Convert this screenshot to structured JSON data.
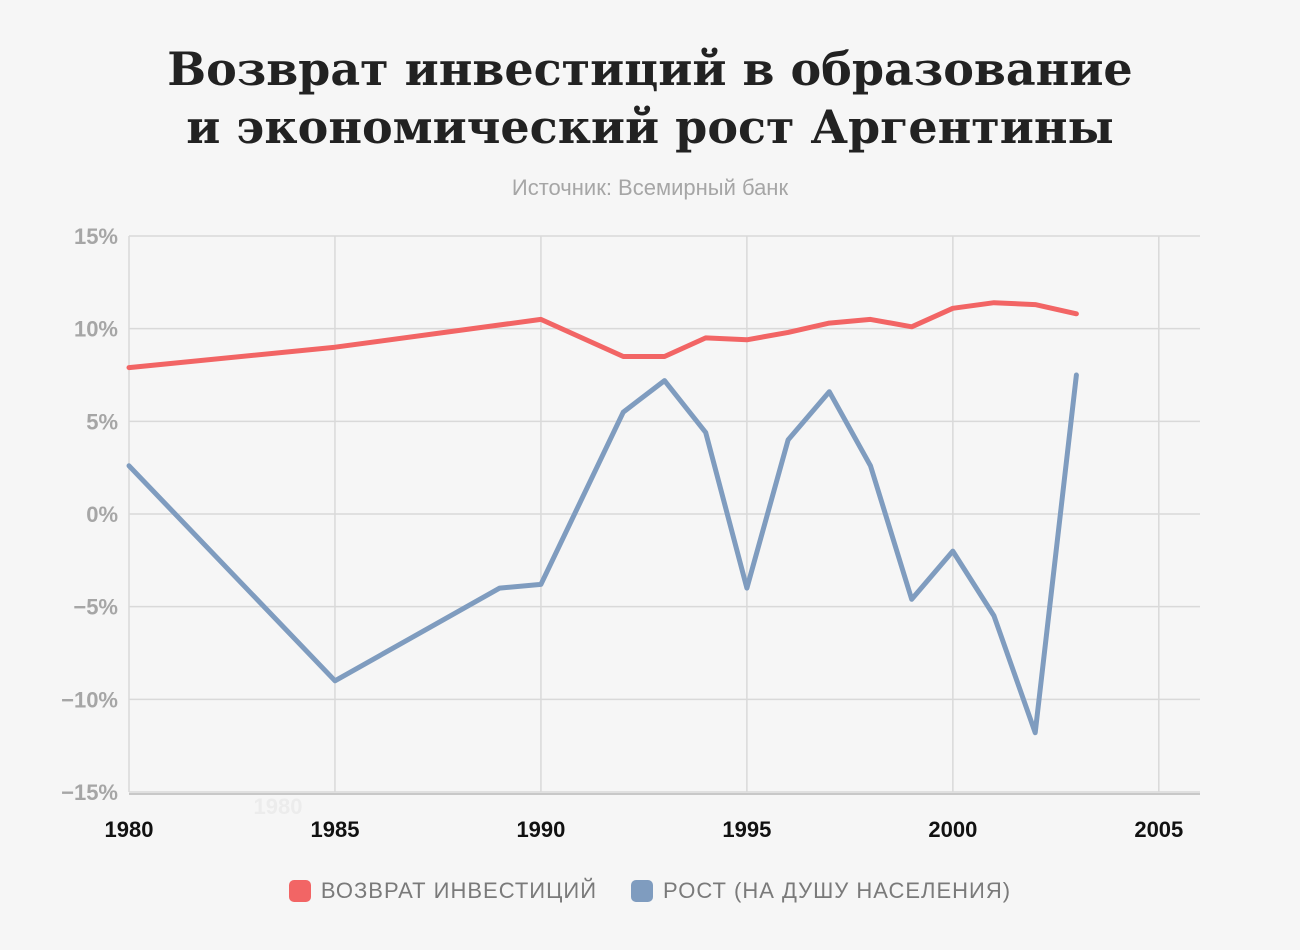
{
  "title_line1": "Возврат инвестиций в образование",
  "title_line2": "и экономический рост Аргентины",
  "subtitle": "Источник: Всемирный банк",
  "watermark": "1980",
  "colors": {
    "background": "#f6f6f6",
    "returns": "#f26565",
    "growth": "#7f9cbf",
    "grid": "#d9d9d9",
    "ytick": "#a6a6a6",
    "xtick": "#111111"
  },
  "chart_data": {
    "type": "line",
    "title": "Возврат инвестиций в образование и экономический рост Аргентины",
    "subtitle": "Источник: Всемирный банк",
    "xlabel": "",
    "ylabel": "",
    "xlim": [
      1980,
      2006
    ],
    "ylim": [
      -15,
      15
    ],
    "grid": true,
    "legend_position": "bottom",
    "x_ticks": [
      1980,
      1985,
      1990,
      1995,
      2000,
      2005
    ],
    "x_tick_labels": [
      "1980",
      "1985",
      "1990",
      "1995",
      "2000",
      "2005"
    ],
    "y_ticks": [
      15,
      10,
      5,
      0,
      -5,
      -10,
      -15
    ],
    "y_tick_labels": [
      "15%",
      "10%",
      "5%",
      "0%",
      "−5%",
      "−10%",
      "−15%"
    ],
    "series": [
      {
        "name": "ВОЗВРАТ ИНВЕСТИЦИЙ",
        "color": "#f26565",
        "x": [
          1980,
          1985,
          1990,
          1992,
          1993,
          1994,
          1995,
          1996,
          1997,
          1998,
          1999,
          2000,
          2001,
          2002,
          2003
        ],
        "y": [
          7.9,
          9.0,
          10.5,
          8.5,
          8.5,
          9.5,
          9.4,
          9.8,
          10.3,
          10.5,
          10.1,
          11.1,
          11.4,
          11.3,
          10.8
        ]
      },
      {
        "name": "РОСТ (НА ДУШУ НАСЕЛЕНИЯ)",
        "color": "#7f9cbf",
        "x": [
          1980,
          1985,
          1989,
          1990,
          1992,
          1993,
          1994,
          1995,
          1996,
          1997,
          1998,
          1999,
          2000,
          2001,
          2002,
          2003
        ],
        "y": [
          2.6,
          -9.0,
          -4.0,
          -3.8,
          5.5,
          7.2,
          4.4,
          -4.0,
          4.0,
          6.6,
          2.6,
          -4.6,
          -2.0,
          -5.5,
          -11.8,
          7.5
        ]
      }
    ]
  }
}
